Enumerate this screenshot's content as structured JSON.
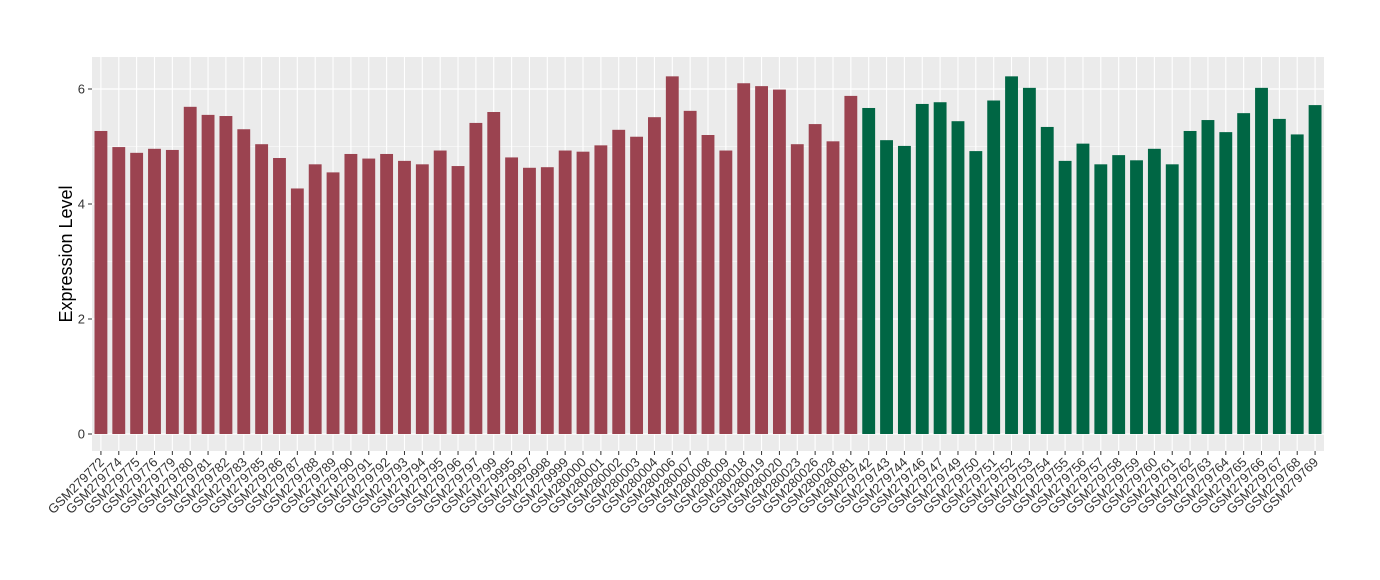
{
  "chart_data": {
    "type": "bar",
    "title": "",
    "xlabel": "",
    "ylabel": "Expression Level",
    "ylim": [
      0,
      6.5
    ],
    "yticks": [
      0,
      2,
      4,
      6
    ],
    "grid": true,
    "legend": "none",
    "colors": {
      "group1": "#9B4350",
      "group2": "#006644",
      "panel": "#EBEBEB",
      "grid": "#FFFFFF"
    },
    "categories": [
      "GSM279772",
      "GSM279774",
      "GSM279775",
      "GSM279776",
      "GSM279779",
      "GSM279780",
      "GSM279781",
      "GSM279782",
      "GSM279783",
      "GSM279785",
      "GSM279786",
      "GSM279787",
      "GSM279788",
      "GSM279789",
      "GSM279790",
      "GSM279791",
      "GSM279792",
      "GSM279793",
      "GSM279794",
      "GSM279795",
      "GSM279796",
      "GSM279797",
      "GSM279799",
      "GSM279995",
      "GSM279997",
      "GSM279998",
      "GSM279999",
      "GSM280000",
      "GSM280001",
      "GSM280002",
      "GSM280003",
      "GSM280004",
      "GSM280006",
      "GSM280007",
      "GSM280008",
      "GSM280009",
      "GSM280018",
      "GSM280019",
      "GSM280020",
      "GSM280023",
      "GSM280026",
      "GSM280028",
      "GSM280081",
      "GSM279742",
      "GSM279743",
      "GSM279744",
      "GSM279746",
      "GSM279747",
      "GSM279749",
      "GSM279750",
      "GSM279751",
      "GSM279752",
      "GSM279753",
      "GSM279754",
      "GSM279755",
      "GSM279756",
      "GSM279757",
      "GSM279758",
      "GSM279759",
      "GSM279760",
      "GSM279761",
      "GSM279762",
      "GSM279763",
      "GSM279764",
      "GSM279765",
      "GSM279766",
      "GSM279767",
      "GSM279768",
      "GSM279769"
    ],
    "values": [
      5.27,
      4.99,
      4.89,
      4.96,
      4.94,
      5.69,
      5.55,
      5.53,
      5.3,
      5.04,
      4.8,
      4.27,
      4.69,
      4.55,
      4.87,
      4.79,
      4.87,
      4.75,
      4.69,
      4.93,
      4.66,
      5.41,
      5.6,
      4.81,
      4.63,
      4.64,
      4.93,
      4.91,
      5.02,
      5.29,
      5.17,
      5.51,
      6.22,
      5.62,
      5.2,
      4.93,
      6.1,
      6.05,
      5.99,
      5.04,
      5.39,
      5.09,
      5.88,
      5.67,
      5.11,
      5.01,
      5.74,
      5.77,
      5.44,
      4.92,
      5.8,
      6.22,
      6.02,
      5.34,
      4.75,
      5.05,
      4.69,
      4.85,
      4.76,
      4.96,
      4.69,
      5.27,
      5.46,
      5.25,
      5.58,
      6.02,
      5.48,
      5.21,
      5.72
    ],
    "groups": [
      1,
      1,
      1,
      1,
      1,
      1,
      1,
      1,
      1,
      1,
      1,
      1,
      1,
      1,
      1,
      1,
      1,
      1,
      1,
      1,
      1,
      1,
      1,
      1,
      1,
      1,
      1,
      1,
      1,
      1,
      1,
      1,
      1,
      1,
      1,
      1,
      1,
      1,
      1,
      1,
      1,
      1,
      1,
      2,
      2,
      2,
      2,
      2,
      2,
      2,
      2,
      2,
      2,
      2,
      2,
      2,
      2,
      2,
      2,
      2,
      2,
      2,
      2,
      2,
      2,
      2,
      2,
      2,
      2
    ]
  }
}
